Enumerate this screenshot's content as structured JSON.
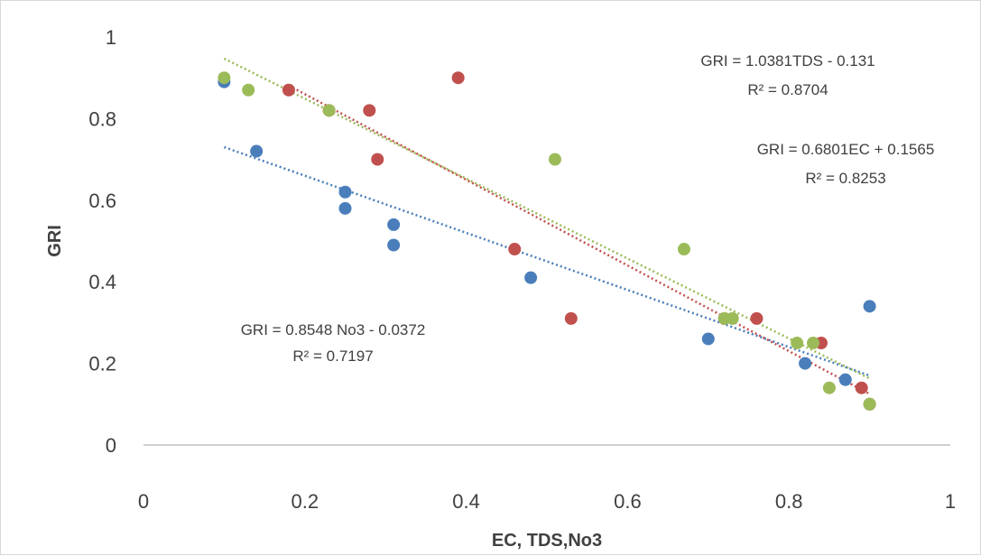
{
  "chart_data": {
    "type": "scatter",
    "xlabel": "EC, TDS,No3",
    "ylabel": "GRI",
    "xlim": [
      0,
      1
    ],
    "ylim": [
      0,
      1
    ],
    "x_ticks": [
      "0",
      "0.2",
      "0.4",
      "0.6",
      "0.8",
      "1"
    ],
    "y_ticks": [
      "0",
      "0.2",
      "0.4",
      "0.6",
      "0.8",
      "1"
    ],
    "grid": false,
    "legend": "none",
    "series": [
      {
        "color": "#4a7ebb",
        "points": [
          [
            0.1,
            0.89
          ],
          [
            0.14,
            0.72
          ],
          [
            0.25,
            0.62
          ],
          [
            0.25,
            0.58
          ],
          [
            0.31,
            0.54
          ],
          [
            0.31,
            0.49
          ],
          [
            0.48,
            0.41
          ],
          [
            0.7,
            0.26
          ],
          [
            0.82,
            0.2
          ],
          [
            0.87,
            0.16
          ],
          [
            0.9,
            0.34
          ],
          [
            0.9,
            0.1
          ]
        ],
        "trendline": {
          "slope": -0.7,
          "intercept": 0.8,
          "x_range": [
            0.1,
            0.9
          ],
          "style": "dotted"
        }
      },
      {
        "color": "#c0504d",
        "points": [
          [
            0.18,
            0.87
          ],
          [
            0.23,
            0.82
          ],
          [
            0.28,
            0.82
          ],
          [
            0.29,
            0.7
          ],
          [
            0.39,
            0.9
          ],
          [
            0.46,
            0.48
          ],
          [
            0.53,
            0.31
          ],
          [
            0.72,
            0.31
          ],
          [
            0.76,
            0.31
          ],
          [
            0.84,
            0.25
          ],
          [
            0.89,
            0.14
          ],
          [
            0.9,
            0.1
          ]
        ],
        "trendline": {
          "slope": -1.05,
          "intercept": 1.07,
          "x_range": [
            0.18,
            0.9
          ],
          "style": "dotted"
        }
      },
      {
        "color": "#9bbb59",
        "points": [
          [
            0.1,
            0.9
          ],
          [
            0.13,
            0.87
          ],
          [
            0.23,
            0.82
          ],
          [
            0.51,
            0.7
          ],
          [
            0.67,
            0.48
          ],
          [
            0.72,
            0.31
          ],
          [
            0.73,
            0.31
          ],
          [
            0.81,
            0.25
          ],
          [
            0.83,
            0.25
          ],
          [
            0.85,
            0.14
          ],
          [
            0.9,
            0.1
          ]
        ],
        "trendline": {
          "slope": -0.98,
          "intercept": 1.045,
          "x_range": [
            0.1,
            0.9
          ],
          "style": "dotted"
        }
      }
    ],
    "annotations": [
      {
        "line1": "GRI = 1.0381TDS - 0.131",
        "line2": "R² = 0.8704",
        "pos": "top-right"
      },
      {
        "line1": "GRI = 0.6801EC + 0.1565",
        "line2": "R² = 0.8253",
        "pos": "right"
      },
      {
        "line1": "GRI = 0.8548 No3 - 0.0372",
        "line2": "R² = 0.7197",
        "pos": "left"
      }
    ]
  }
}
